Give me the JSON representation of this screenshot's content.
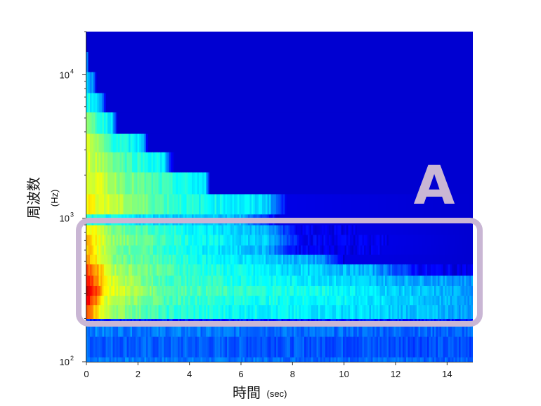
{
  "chart_data": {
    "type": "heatmap",
    "title": "",
    "xlabel": "時間",
    "xlabel_unit": "(sec)",
    "ylabel": "周波数",
    "ylabel_unit": "(Hz)",
    "xlim": [
      0,
      15
    ],
    "ylim": [
      100,
      20000
    ],
    "y_scale": "log",
    "x_ticks": [
      "0",
      "2",
      "4",
      "6",
      "8",
      "10",
      "12",
      "14"
    ],
    "y_ticks": [
      {
        "value": 100,
        "base": "10",
        "exp": "2"
      },
      {
        "value": 1000,
        "base": "10",
        "exp": "3"
      },
      {
        "value": 10000,
        "base": "10",
        "exp": "4"
      }
    ],
    "bands": [
      {
        "f_low": 100,
        "f_high": 108,
        "levels": [
          [
            0,
            0.25
          ],
          [
            15,
            0.22
          ]
        ]
      },
      {
        "f_low": 108,
        "f_high": 150,
        "levels": [
          [
            0,
            0.22
          ],
          [
            15,
            0.2
          ]
        ]
      },
      {
        "f_low": 150,
        "f_high": 180,
        "levels": [
          [
            0,
            0.25
          ],
          [
            15,
            0.22
          ]
        ]
      },
      {
        "f_low": 180,
        "f_high": 200,
        "levels": [
          [
            0,
            0.16
          ],
          [
            15,
            0.14
          ]
        ]
      },
      {
        "f_low": 200,
        "f_high": 250,
        "levels": [
          [
            0,
            0.78
          ],
          [
            0.8,
            0.55
          ],
          [
            3,
            0.42
          ],
          [
            6,
            0.38
          ],
          [
            10,
            0.35
          ],
          [
            14,
            0.3
          ],
          [
            15,
            0.28
          ]
        ]
      },
      {
        "f_low": 250,
        "f_high": 290,
        "levels": [
          [
            0,
            0.9
          ],
          [
            0.8,
            0.58
          ],
          [
            3,
            0.45
          ],
          [
            6,
            0.4
          ],
          [
            10,
            0.37
          ],
          [
            14,
            0.3
          ],
          [
            15,
            0.28
          ]
        ]
      },
      {
        "f_low": 290,
        "f_high": 340,
        "levels": [
          [
            0,
            0.97
          ],
          [
            0.8,
            0.62
          ],
          [
            3,
            0.47
          ],
          [
            6,
            0.42
          ],
          [
            10,
            0.38
          ],
          [
            12,
            0.33
          ],
          [
            15,
            0.28
          ]
        ]
      },
      {
        "f_low": 340,
        "f_high": 400,
        "levels": [
          [
            0,
            0.88
          ],
          [
            0.8,
            0.6
          ],
          [
            3,
            0.44
          ],
          [
            6,
            0.4
          ],
          [
            10,
            0.34
          ],
          [
            12,
            0.3
          ],
          [
            15,
            0.27
          ]
        ]
      },
      {
        "f_low": 400,
        "f_high": 480,
        "levels": [
          [
            0,
            0.82
          ],
          [
            1,
            0.55
          ],
          [
            4,
            0.42
          ],
          [
            8,
            0.34
          ],
          [
            11,
            0.3
          ],
          [
            13,
            0.12
          ],
          [
            15,
            0.1
          ]
        ]
      },
      {
        "f_low": 480,
        "f_high": 560,
        "levels": [
          [
            0,
            0.72
          ],
          [
            1,
            0.5
          ],
          [
            4,
            0.4
          ],
          [
            7,
            0.33
          ],
          [
            9,
            0.28
          ],
          [
            10,
            0.1
          ],
          [
            15,
            0.08
          ]
        ]
      },
      {
        "f_low": 560,
        "f_high": 650,
        "levels": [
          [
            0,
            0.7
          ],
          [
            1,
            0.5
          ],
          [
            4,
            0.38
          ],
          [
            7,
            0.3
          ],
          [
            8,
            0.12
          ],
          [
            15,
            0.08
          ]
        ]
      },
      {
        "f_low": 650,
        "f_high": 770,
        "levels": [
          [
            0,
            0.7
          ],
          [
            1,
            0.52
          ],
          [
            4,
            0.4
          ],
          [
            7,
            0.32
          ],
          [
            8.5,
            0.12
          ],
          [
            15,
            0.08
          ]
        ]
      },
      {
        "f_low": 770,
        "f_high": 900,
        "levels": [
          [
            0,
            0.66
          ],
          [
            1,
            0.5
          ],
          [
            4,
            0.38
          ],
          [
            7,
            0.3
          ],
          [
            8.2,
            0.11
          ],
          [
            15,
            0.08
          ]
        ]
      },
      {
        "f_low": 900,
        "f_high": 1070,
        "levels": [
          [
            0,
            0.4
          ],
          [
            2,
            0.35
          ],
          [
            6,
            0.3
          ],
          [
            7.5,
            0.1
          ],
          [
            15,
            0.08
          ]
        ]
      },
      {
        "f_low": 1070,
        "f_high": 1480,
        "levels": [
          [
            0,
            0.64
          ],
          [
            2,
            0.5
          ],
          [
            4,
            0.4
          ],
          [
            7,
            0.34
          ],
          [
            7.8,
            0.1
          ],
          [
            15,
            0.08
          ]
        ]
      },
      {
        "f_low": 1480,
        "f_high": 2100,
        "levels": [
          [
            0,
            0.62
          ],
          [
            1.5,
            0.5
          ],
          [
            3,
            0.42
          ],
          [
            4.6,
            0.35
          ],
          [
            4.8,
            0.08
          ],
          [
            15,
            0.08
          ]
        ]
      },
      {
        "f_low": 2100,
        "f_high": 2900,
        "levels": [
          [
            0,
            0.6
          ],
          [
            1.5,
            0.45
          ],
          [
            3,
            0.36
          ],
          [
            3.4,
            0.08
          ],
          [
            15,
            0.08
          ]
        ]
      },
      {
        "f_low": 2900,
        "f_high": 3900,
        "levels": [
          [
            0,
            0.58
          ],
          [
            1,
            0.42
          ],
          [
            2.2,
            0.34
          ],
          [
            2.4,
            0.08
          ],
          [
            15,
            0.08
          ]
        ]
      },
      {
        "f_low": 3900,
        "f_high": 5500,
        "levels": [
          [
            0,
            0.5
          ],
          [
            1,
            0.35
          ],
          [
            1.2,
            0.08
          ],
          [
            15,
            0.08
          ]
        ]
      },
      {
        "f_low": 5500,
        "f_high": 7500,
        "levels": [
          [
            0,
            0.4
          ],
          [
            0.6,
            0.3
          ],
          [
            0.75,
            0.08
          ],
          [
            15,
            0.08
          ]
        ]
      },
      {
        "f_low": 7500,
        "f_high": 10500,
        "levels": [
          [
            0,
            0.32
          ],
          [
            0.3,
            0.25
          ],
          [
            0.4,
            0.08
          ],
          [
            15,
            0.08
          ]
        ]
      },
      {
        "f_low": 10500,
        "f_high": 14500,
        "levels": [
          [
            0,
            0.25
          ],
          [
            0.05,
            0.2
          ],
          [
            0.1,
            0.08
          ],
          [
            15,
            0.08
          ]
        ]
      },
      {
        "f_low": 14500,
        "f_high": 20000,
        "levels": [
          [
            0,
            0.08
          ],
          [
            15,
            0.08
          ]
        ]
      }
    ],
    "highlight": {
      "label": "A",
      "f_low": 182,
      "f_high": 980,
      "color": "#c9b6d4"
    },
    "colormap": "jet",
    "background_color": "#00008f",
    "grid": false,
    "legend": "none"
  }
}
